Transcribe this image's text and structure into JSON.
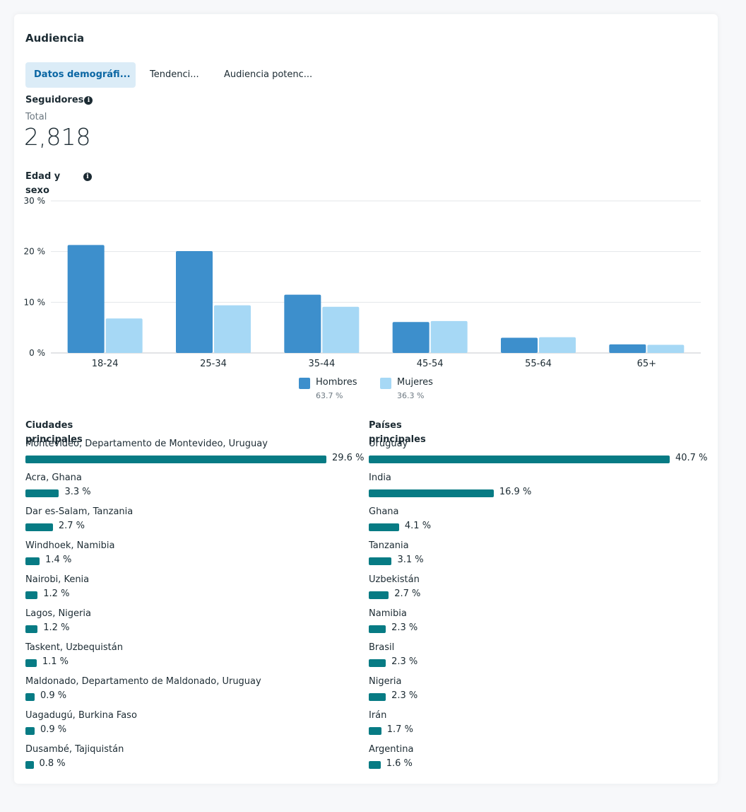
{
  "header": {
    "title": "Audiencia"
  },
  "tabs": [
    {
      "label": "Datos demográfi...",
      "active": true
    },
    {
      "label": "Tendenci...",
      "active": false
    },
    {
      "label": "Audiencia potenc...",
      "active": false
    }
  ],
  "followers": {
    "title": "Seguidores",
    "total_label": "Total",
    "total_value": "2,818"
  },
  "age_sex": {
    "title": "Edad y sexo"
  },
  "colors": {
    "hombres": "#3d8fcc",
    "mujeres": "#a6d8f5",
    "bar": "#077b84",
    "accent": "#0a66a3"
  },
  "chart_data": {
    "type": "bar",
    "categories": [
      "18-24",
      "25-34",
      "35-44",
      "45-54",
      "55-64",
      "65+"
    ],
    "series": [
      {
        "name": "Hombres",
        "values": [
          21.3,
          20.1,
          11.5,
          6.1,
          3.0,
          1.7
        ]
      },
      {
        "name": "Mujeres",
        "values": [
          6.8,
          9.4,
          9.1,
          6.3,
          3.1,
          1.6
        ]
      }
    ],
    "ylim": [
      0,
      30
    ],
    "yticks": [
      "0 %",
      "10 %",
      "20 %",
      "30 %"
    ],
    "grid": true,
    "legend_position": "bottom",
    "title": "",
    "xlabel": "",
    "ylabel": ""
  },
  "legend": [
    {
      "label": "Hombres",
      "pct": "63.7 %"
    },
    {
      "label": "Mujeres",
      "pct": "36.3 %"
    }
  ],
  "cities": {
    "title": "Ciudades principales",
    "items": [
      {
        "name": "Montevideo, Departamento de Montevideo, Uruguay",
        "value": 29.6,
        "label": "29.6 %"
      },
      {
        "name": "Acra, Ghana",
        "value": 3.3,
        "label": "3.3 %"
      },
      {
        "name": "Dar es-Salam, Tanzania",
        "value": 2.7,
        "label": "2.7 %"
      },
      {
        "name": "Windhoek, Namibia",
        "value": 1.4,
        "label": "1.4 %"
      },
      {
        "name": "Nairobi, Kenia",
        "value": 1.2,
        "label": "1.2 %"
      },
      {
        "name": "Lagos, Nigeria",
        "value": 1.2,
        "label": "1.2 %"
      },
      {
        "name": "Taskent, Uzbequistán",
        "value": 1.1,
        "label": "1.1 %"
      },
      {
        "name": "Maldonado, Departamento de Maldonado, Uruguay",
        "value": 0.9,
        "label": "0.9 %"
      },
      {
        "name": "Uagadugú, Burkina Faso",
        "value": 0.9,
        "label": "0.9 %"
      },
      {
        "name": "Dusambé, Tajiquistán",
        "value": 0.8,
        "label": "0.8 %"
      }
    ]
  },
  "countries": {
    "title": "Países principales",
    "items": [
      {
        "name": "Uruguay",
        "value": 40.7,
        "label": "40.7 %"
      },
      {
        "name": "India",
        "value": 16.9,
        "label": "16.9 %"
      },
      {
        "name": "Ghana",
        "value": 4.1,
        "label": "4.1 %"
      },
      {
        "name": "Tanzania",
        "value": 3.1,
        "label": "3.1 %"
      },
      {
        "name": "Uzbekistán",
        "value": 2.7,
        "label": "2.7 %"
      },
      {
        "name": "Namibia",
        "value": 2.3,
        "label": "2.3 %"
      },
      {
        "name": "Brasil",
        "value": 2.3,
        "label": "2.3 %"
      },
      {
        "name": "Nigeria",
        "value": 2.3,
        "label": "2.3 %"
      },
      {
        "name": "Irán",
        "value": 1.7,
        "label": "1.7 %"
      },
      {
        "name": "Argentina",
        "value": 1.6,
        "label": "1.6 %"
      }
    ]
  }
}
